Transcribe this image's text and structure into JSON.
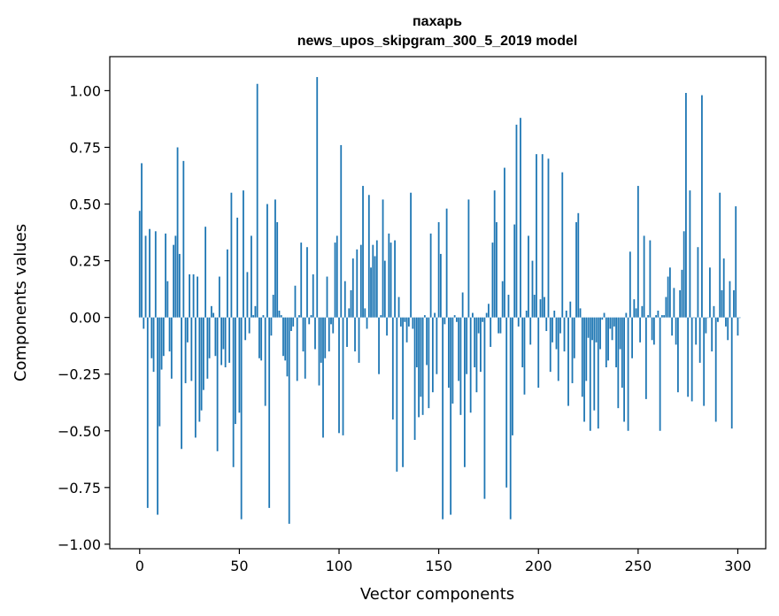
{
  "chart_data": {
    "type": "bar",
    "title": "пахарь",
    "subtitle": "news_upos_skipgram_300_5_2019 model",
    "xlabel": "Vector components",
    "ylabel": "Components values",
    "xlim": [
      -15,
      314
    ],
    "ylim": [
      -1.02,
      1.15
    ],
    "xticks": [
      0,
      50,
      100,
      150,
      200,
      250,
      300
    ],
    "yticks": [
      -1.0,
      -0.75,
      -0.5,
      -0.25,
      0.0,
      0.25,
      0.5,
      0.75,
      1.0
    ],
    "ytick_labels": [
      "−1.00",
      "−0.75",
      "−0.50",
      "−0.25",
      "0.00",
      "0.25",
      "0.50",
      "0.75",
      "1.00"
    ],
    "grid": false,
    "bar_color": "#1f77b4",
    "values": [
      0.47,
      0.68,
      -0.05,
      0.36,
      -0.84,
      0.39,
      -0.18,
      -0.24,
      0.38,
      -0.87,
      -0.48,
      -0.23,
      -0.17,
      0.37,
      0.16,
      -0.15,
      -0.27,
      0.32,
      0.36,
      0.75,
      0.28,
      -0.58,
      0.69,
      -0.29,
      -0.11,
      0.19,
      -0.28,
      0.19,
      -0.53,
      0.18,
      -0.46,
      -0.41,
      -0.32,
      0.4,
      -0.27,
      -0.18,
      0.05,
      0.02,
      -0.17,
      -0.59,
      0.18,
      -0.21,
      -0.14,
      -0.22,
      0.3,
      -0.2,
      0.55,
      -0.66,
      -0.47,
      0.44,
      -0.42,
      -0.89,
      0.56,
      -0.1,
      0.2,
      -0.07,
      0.36,
      0.01,
      0.05,
      1.03,
      -0.18,
      -0.19,
      0.01,
      -0.39,
      0.5,
      -0.84,
      -0.08,
      0.1,
      0.52,
      0.42,
      0.03,
      0.01,
      -0.17,
      -0.19,
      -0.26,
      -0.91,
      -0.06,
      -0.04,
      0.14,
      -0.28,
      0.01,
      0.33,
      -0.15,
      -0.27,
      0.31,
      -0.03,
      0.01,
      0.19,
      -0.14,
      1.06,
      -0.3,
      -0.2,
      -0.53,
      -0.18,
      0.18,
      -0.15,
      -0.03,
      -0.07,
      0.33,
      0.36,
      -0.51,
      0.76,
      -0.52,
      0.16,
      -0.13,
      0.04,
      0.12,
      0.26,
      -0.15,
      0.3,
      -0.2,
      0.32,
      0.58,
      0.04,
      -0.05,
      0.54,
      0.22,
      0.32,
      0.27,
      0.34,
      -0.25,
      0.01,
      0.52,
      0.25,
      -0.08,
      0.37,
      0.33,
      -0.45,
      0.34,
      -0.68,
      0.09,
      -0.04,
      -0.66,
      -0.02,
      -0.11,
      -0.04,
      0.55,
      -0.05,
      -0.54,
      -0.22,
      -0.44,
      -0.35,
      -0.43,
      0.01,
      -0.21,
      -0.4,
      0.37,
      -0.33,
      0.02,
      -0.25,
      0.42,
      0.28,
      -0.89,
      -0.03,
      0.48,
      -0.31,
      -0.87,
      -0.38,
      0.01,
      -0.02,
      -0.28,
      -0.43,
      0.11,
      -0.66,
      -0.25,
      0.52,
      -0.42,
      0.02,
      -0.22,
      -0.33,
      -0.07,
      -0.24,
      -0.02,
      -0.8,
      0.02,
      0.06,
      -0.13,
      0.33,
      0.56,
      0.42,
      -0.07,
      -0.07,
      0.16,
      0.66,
      -0.75,
      0.1,
      -0.89,
      -0.52,
      0.41,
      0.85,
      -0.04,
      0.88,
      -0.22,
      -0.34,
      0.03,
      0.36,
      -0.12,
      0.25,
      0.1,
      0.72,
      -0.31,
      0.08,
      0.72,
      0.09,
      -0.06,
      0.7,
      -0.24,
      -0.11,
      0.03,
      -0.14,
      -0.28,
      -0.07,
      0.64,
      -0.15,
      0.03,
      -0.39,
      0.07,
      -0.29,
      -0.18,
      0.42,
      0.46,
      0.04,
      -0.35,
      -0.46,
      -0.28,
      -0.09,
      -0.5,
      -0.1,
      -0.41,
      -0.11,
      -0.49,
      -0.14,
      -0.01,
      0.02,
      -0.22,
      -0.19,
      -0.05,
      -0.1,
      -0.04,
      -0.22,
      -0.4,
      -0.14,
      -0.31,
      -0.46,
      0.02,
      -0.5,
      0.29,
      -0.18,
      0.08,
      0.04,
      0.58,
      -0.11,
      0.05,
      0.36,
      -0.36,
      0.01,
      0.34,
      -0.1,
      -0.12,
      0.01,
      0.03,
      -0.5,
      0.01,
      0.01,
      0.09,
      0.18,
      0.22,
      -0.08,
      0.13,
      -0.12,
      -0.33,
      0.12,
      0.21,
      0.38,
      0.99,
      -0.35,
      0.56,
      -0.37,
      0.0,
      -0.12,
      0.31,
      -0.2,
      0.98,
      -0.39,
      -0.07,
      0.0,
      0.22,
      -0.15,
      0.05,
      -0.46,
      -0.02,
      0.55,
      0.12,
      0.26,
      -0.04,
      -0.1,
      0.16,
      -0.49,
      0.12,
      0.49,
      -0.08,
      0.0
    ]
  }
}
